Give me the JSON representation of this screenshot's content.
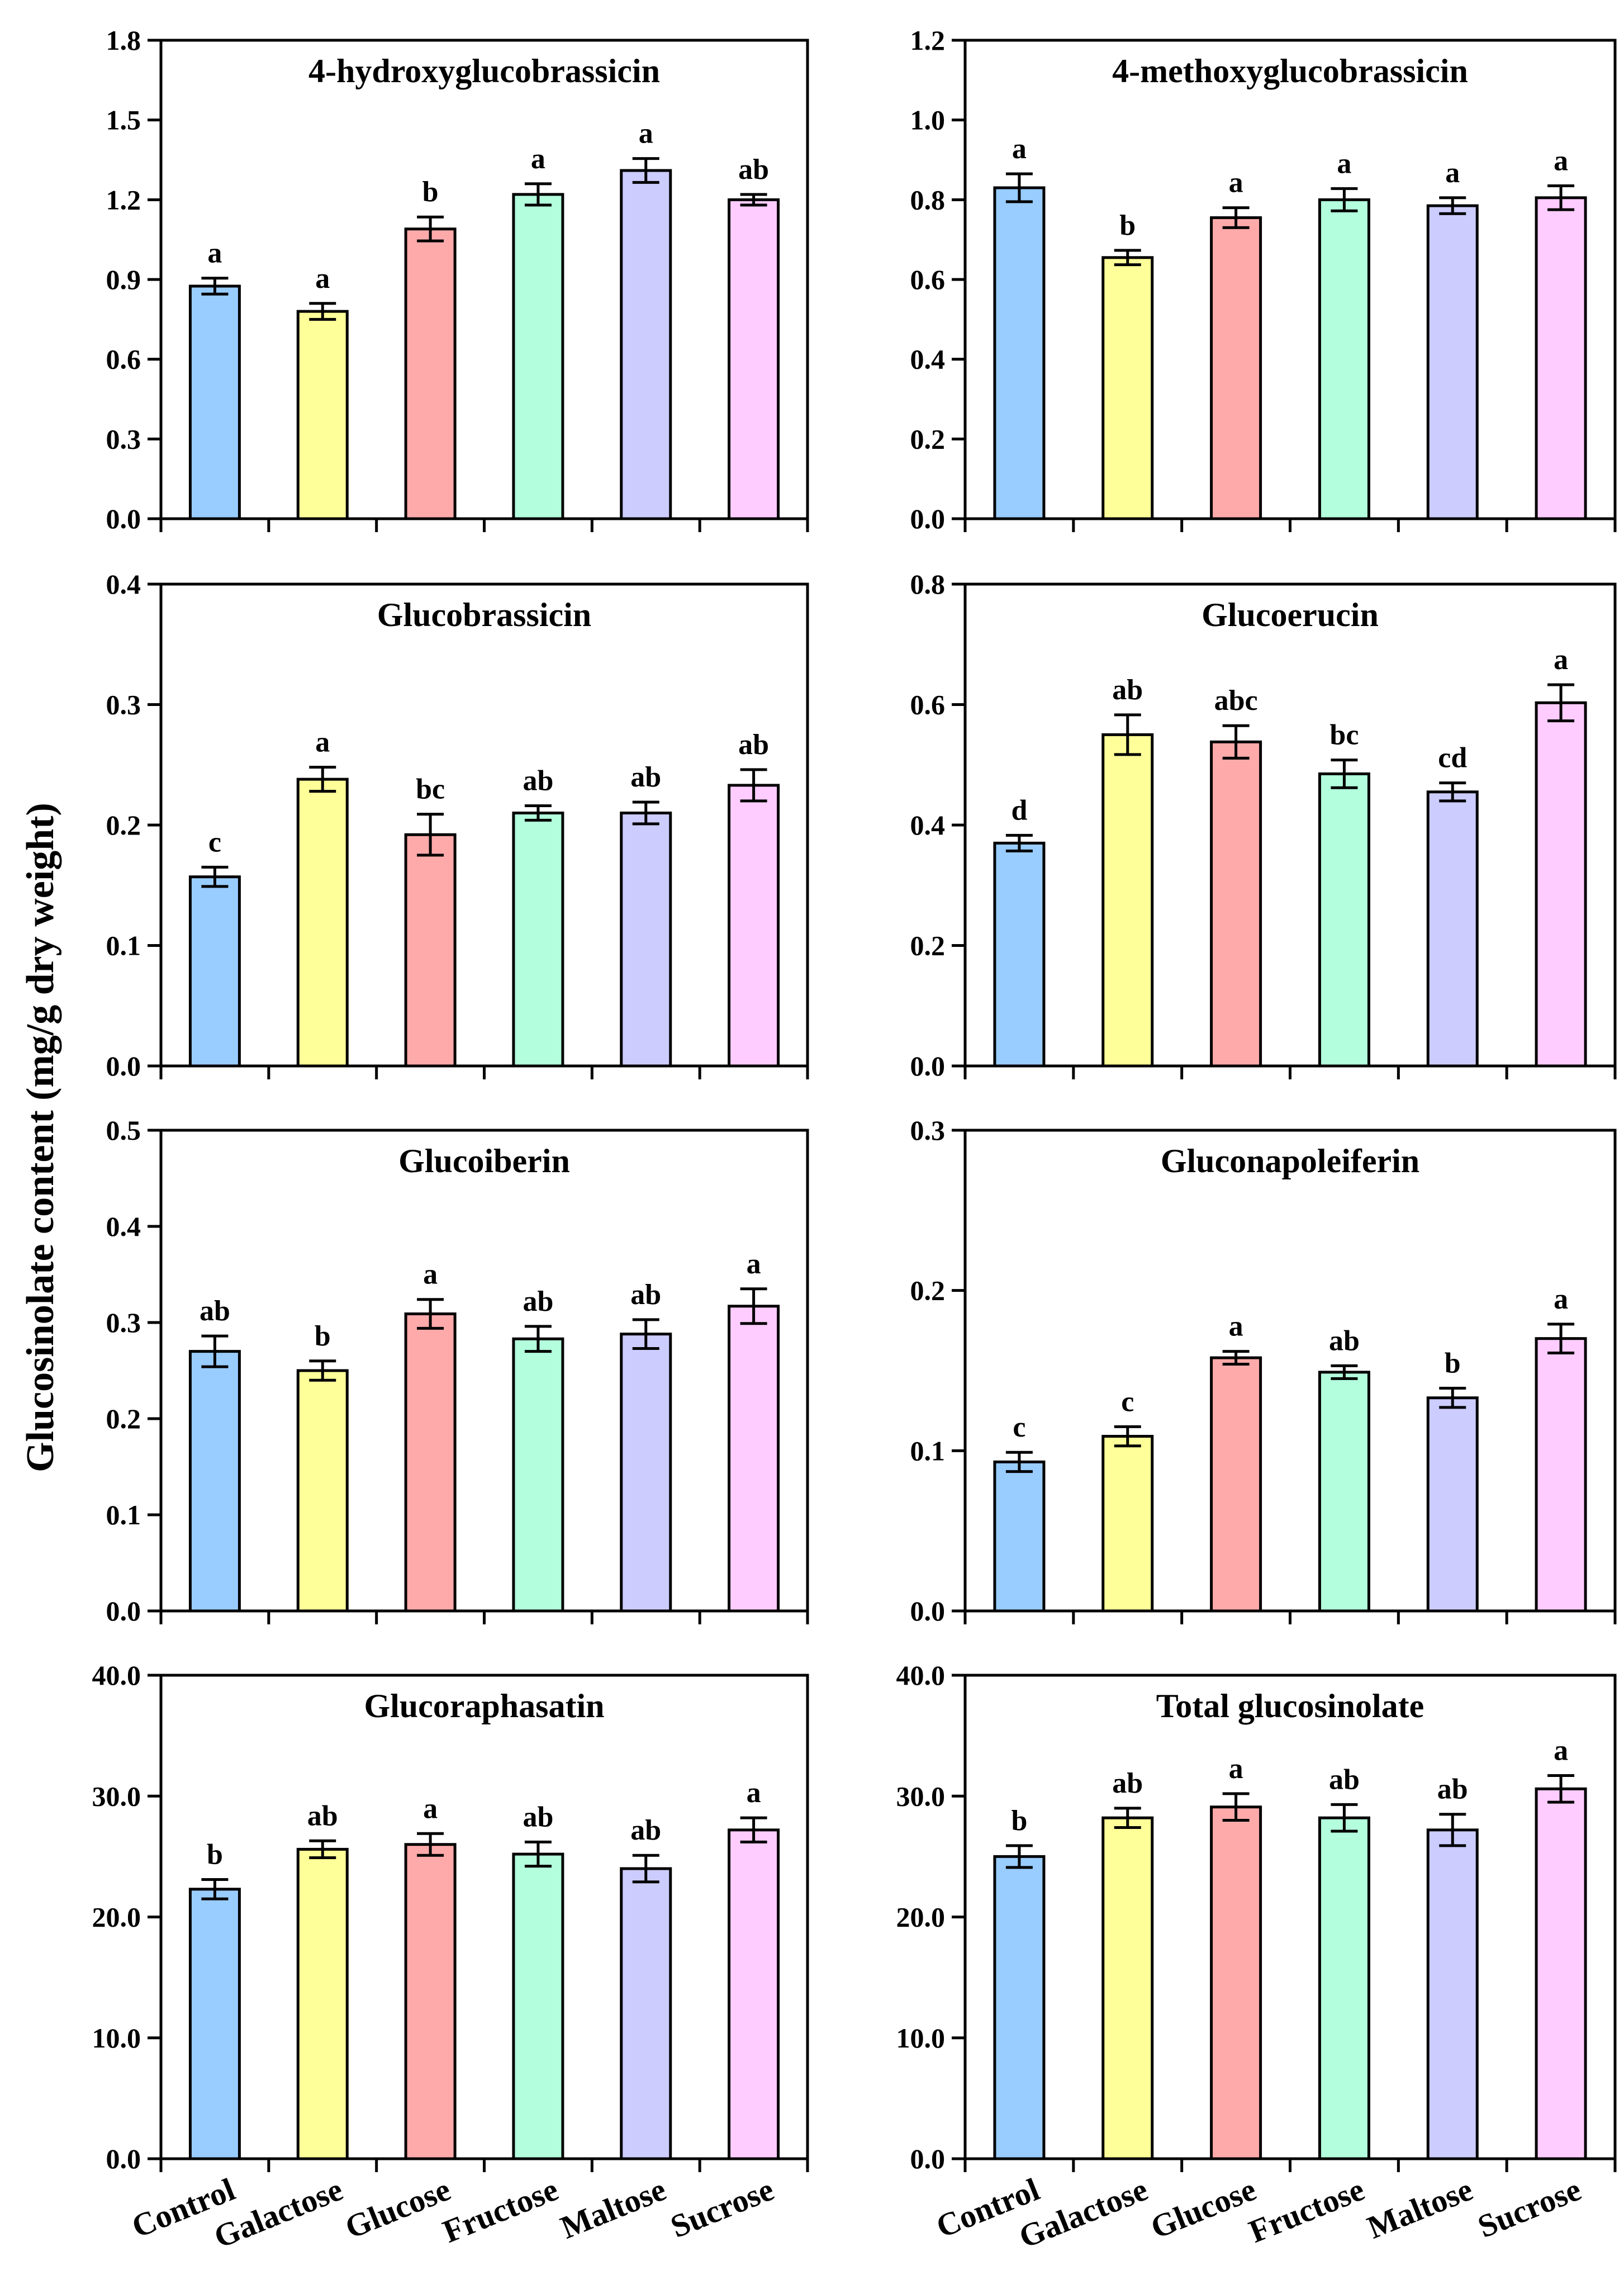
{
  "figure": {
    "ylabel": "Glucosinolate content (mg/g dry weight)"
  },
  "colors": {
    "bars": [
      "#99ccff",
      "#ffff99",
      "#ffaaaa",
      "#b3ffdd",
      "#ccccff",
      "#ffccff"
    ],
    "axis": "#000000"
  },
  "chart_data": [
    {
      "type": "bar",
      "title": "4-hydroxyglucobrassicin",
      "categories": [
        "Control",
        "Galactose",
        "Glucose",
        "Fructose",
        "Maltose",
        "Sucrose"
      ],
      "values": [
        0.875,
        0.78,
        1.09,
        1.22,
        1.31,
        1.2
      ],
      "errors": [
        0.03,
        0.03,
        0.045,
        0.04,
        0.045,
        0.02
      ],
      "significance": [
        "a",
        "a",
        "b",
        "a",
        "a",
        "ab"
      ],
      "ylim": [
        0,
        1.8
      ],
      "yticks": [
        "0.0",
        "0.3",
        "0.6",
        "0.9",
        "1.2",
        "1.5",
        "1.8"
      ],
      "xlabel": "",
      "ylabel": "Glucosinolate content (mg/g dry weight)"
    },
    {
      "type": "bar",
      "title": "4-methoxyglucobrassicin",
      "categories": [
        "Control",
        "Galactose",
        "Glucose",
        "Fructose",
        "Maltose",
        "Sucrose"
      ],
      "values": [
        0.83,
        0.655,
        0.755,
        0.8,
        0.785,
        0.805
      ],
      "errors": [
        0.035,
        0.018,
        0.025,
        0.028,
        0.02,
        0.03
      ],
      "significance": [
        "a",
        "b",
        "a",
        "a",
        "a",
        "a"
      ],
      "ylim": [
        0,
        1.2
      ],
      "yticks": [
        "0.0",
        "0.2",
        "0.4",
        "0.6",
        "0.8",
        "1.0",
        "1.2"
      ],
      "xlabel": "",
      "ylabel": "Glucosinolate content (mg/g dry weight)"
    },
    {
      "type": "bar",
      "title": "Glucobrassicin",
      "categories": [
        "Control",
        "Galactose",
        "Glucose",
        "Fructose",
        "Maltose",
        "Sucrose"
      ],
      "values": [
        0.157,
        0.238,
        0.192,
        0.21,
        0.21,
        0.233
      ],
      "errors": [
        0.008,
        0.01,
        0.017,
        0.006,
        0.009,
        0.013
      ],
      "significance": [
        "c",
        "a",
        "bc",
        "ab",
        "ab",
        "ab"
      ],
      "ylim": [
        0,
        0.4
      ],
      "yticks": [
        "0.0",
        "0.1",
        "0.2",
        "0.3",
        "0.4"
      ],
      "xlabel": "",
      "ylabel": "Glucosinolate content (mg/g dry weight)"
    },
    {
      "type": "bar",
      "title": "Glucoerucin",
      "categories": [
        "Control",
        "Galactose",
        "Glucose",
        "Fructose",
        "Maltose",
        "Sucrose"
      ],
      "values": [
        0.37,
        0.55,
        0.538,
        0.485,
        0.455,
        0.603
      ],
      "errors": [
        0.013,
        0.033,
        0.027,
        0.023,
        0.015,
        0.03
      ],
      "significance": [
        "d",
        "ab",
        "abc",
        "bc",
        "cd",
        "a"
      ],
      "ylim": [
        0,
        0.8
      ],
      "yticks": [
        "0.0",
        "0.2",
        "0.4",
        "0.6",
        "0.8"
      ],
      "xlabel": "",
      "ylabel": "Glucosinolate content (mg/g dry weight)"
    },
    {
      "type": "bar",
      "title": "Glucoiberin",
      "categories": [
        "Control",
        "Galactose",
        "Glucose",
        "Fructose",
        "Maltose",
        "Sucrose"
      ],
      "values": [
        0.27,
        0.25,
        0.309,
        0.283,
        0.288,
        0.317
      ],
      "errors": [
        0.016,
        0.01,
        0.015,
        0.013,
        0.015,
        0.018
      ],
      "significance": [
        "ab",
        "b",
        "a",
        "ab",
        "ab",
        "a"
      ],
      "ylim": [
        0,
        0.5
      ],
      "yticks": [
        "0.0",
        "0.1",
        "0.2",
        "0.3",
        "0.4",
        "0.5"
      ],
      "xlabel": "",
      "ylabel": "Glucosinolate content (mg/g dry weight)"
    },
    {
      "type": "bar",
      "title": "Gluconapoleiferin",
      "categories": [
        "Control",
        "Galactose",
        "Glucose",
        "Fructose",
        "Maltose",
        "Sucrose"
      ],
      "values": [
        0.093,
        0.109,
        0.158,
        0.149,
        0.133,
        0.17
      ],
      "errors": [
        0.006,
        0.006,
        0.004,
        0.004,
        0.006,
        0.009
      ],
      "significance": [
        "c",
        "c",
        "a",
        "ab",
        "b",
        "a"
      ],
      "ylim": [
        0,
        0.3
      ],
      "yticks": [
        "0.0",
        "0.1",
        "0.2",
        "0.3"
      ],
      "xlabel": "",
      "ylabel": "Glucosinolate content (mg/g dry weight)"
    },
    {
      "type": "bar",
      "title": "Glucoraphasatin",
      "categories": [
        "Control",
        "Galactose",
        "Glucose",
        "Fructose",
        "Maltose",
        "Sucrose"
      ],
      "values": [
        22.3,
        25.6,
        26.0,
        25.2,
        24.0,
        27.2
      ],
      "errors": [
        0.8,
        0.7,
        0.9,
        1.0,
        1.1,
        1.0
      ],
      "significance": [
        "b",
        "ab",
        "a",
        "ab",
        "ab",
        "a"
      ],
      "ylim": [
        0,
        40
      ],
      "yticks": [
        "0.0",
        "10.0",
        "20.0",
        "30.0",
        "40.0"
      ],
      "xlabel": "",
      "ylabel": "Glucosinolate content (mg/g dry weight)"
    },
    {
      "type": "bar",
      "title": "Total glucosinolate",
      "categories": [
        "Control",
        "Galactose",
        "Glucose",
        "Fructose",
        "Maltose",
        "Sucrose"
      ],
      "values": [
        25.0,
        28.2,
        29.1,
        28.2,
        27.2,
        30.6
      ],
      "errors": [
        0.9,
        0.8,
        1.1,
        1.1,
        1.3,
        1.1
      ],
      "significance": [
        "b",
        "ab",
        "a",
        "ab",
        "ab",
        "a"
      ],
      "ylim": [
        0,
        40
      ],
      "yticks": [
        "0.0",
        "10.0",
        "20.0",
        "30.0",
        "40.0"
      ],
      "xlabel": "",
      "ylabel": "Glucosinolate content (mg/g dry weight)"
    }
  ]
}
